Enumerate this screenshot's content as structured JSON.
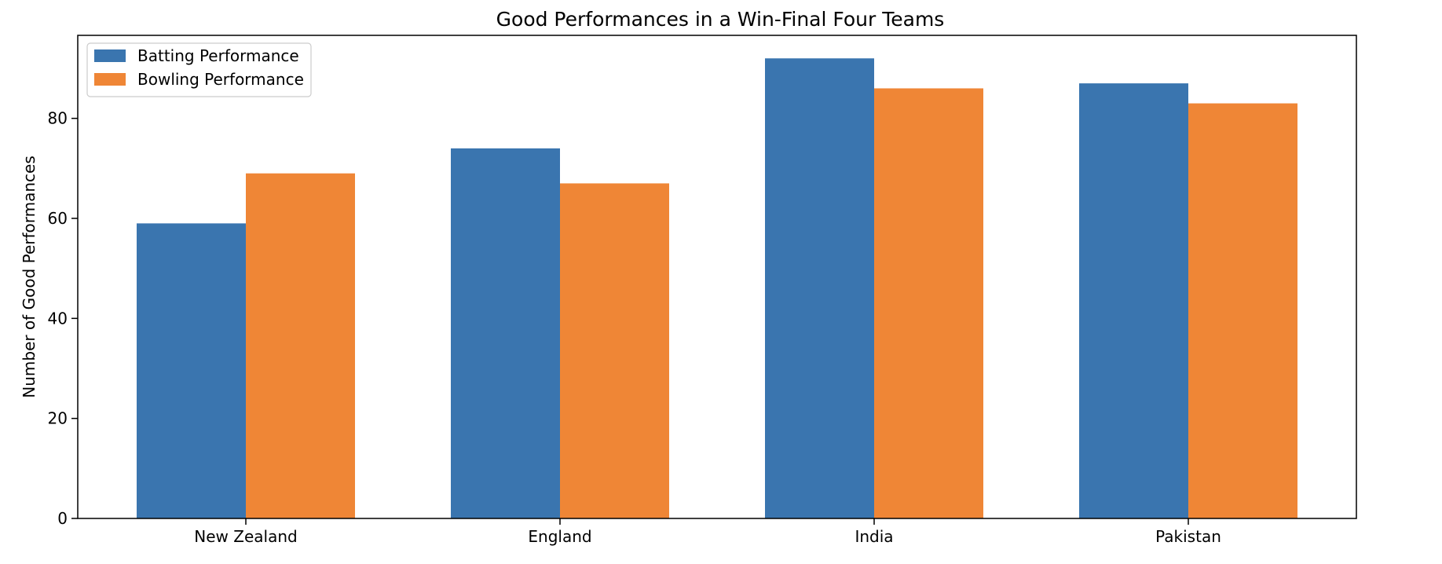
{
  "chart_data": {
    "type": "bar",
    "title": "Good Performances in a Win-Final Four Teams",
    "xlabel": "",
    "ylabel": "Number of Good Performances",
    "categories": [
      "New Zealand",
      "England",
      "India",
      "Pakistan"
    ],
    "series": [
      {
        "name": "Batting Performance",
        "values": [
          59,
          74,
          92,
          87
        ],
        "color": "#3a75af"
      },
      {
        "name": "Bowling Performance",
        "values": [
          69,
          67,
          86,
          83
        ],
        "color": "#ef8636"
      }
    ],
    "ylim": [
      0,
      96.6
    ],
    "yticks": [
      0,
      20,
      40,
      60,
      80
    ],
    "grid": false,
    "legend_position": "top-left"
  }
}
